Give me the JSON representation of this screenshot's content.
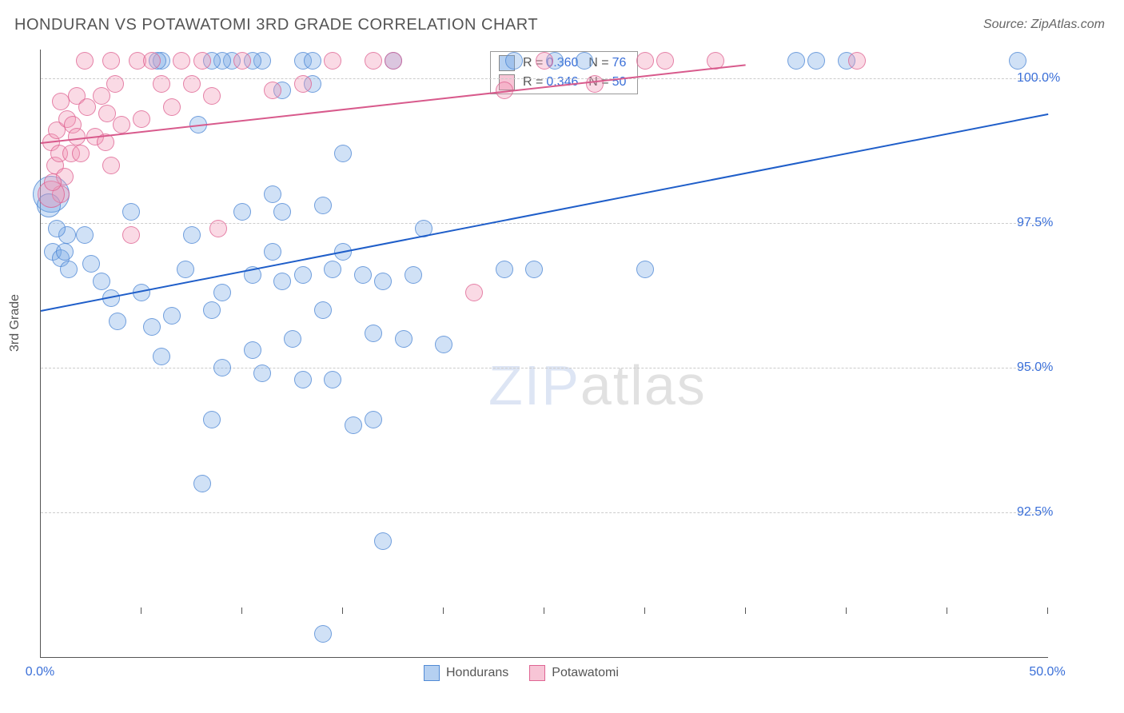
{
  "title": "HONDURAN VS POTAWATOMI 3RD GRADE CORRELATION CHART",
  "source_prefix": "Source: ",
  "source": "ZipAtlas.com",
  "watermark": {
    "a": "ZIP",
    "b": "atlas"
  },
  "y_axis_label": "3rd Grade",
  "legend": [
    {
      "name": "Hondurans",
      "color_fill": "rgba(120,170,230,.55)",
      "color_stroke": "rgba(70,130,210,.9)"
    },
    {
      "name": "Potawatomi",
      "color_fill": "rgba(240,150,180,.55)",
      "color_stroke": "rgba(220,90,140,.9)"
    }
  ],
  "rbox": [
    {
      "swatch_fill": "rgba(120,170,230,.55)",
      "r_label": "R =",
      "r": "0.360",
      "n_label": "N =",
      "n": "76"
    },
    {
      "swatch_fill": "rgba(240,150,180,.55)",
      "r_label": "R =",
      "r": "0.346",
      "n_label": "N =",
      "n": "50"
    }
  ],
  "chart": {
    "type": "scatter",
    "xlim": [
      0,
      50
    ],
    "ylim": [
      90,
      100.5
    ],
    "x_ticks": [
      0,
      5,
      10,
      15,
      20,
      25,
      30,
      35,
      40,
      45,
      50
    ],
    "x_tick_labels": {
      "0": "0.0%",
      "50": "50.0%"
    },
    "y_gridlines": [
      92.5,
      95.0,
      97.5,
      100.0
    ],
    "y_tick_labels": [
      "92.5%",
      "95.0%",
      "97.5%",
      "100.0%"
    ],
    "background_color": "#ffffff",
    "grid_color": "#cccccc",
    "marker_radius": 10,
    "series": [
      {
        "name": "Hondurans",
        "class": "s1",
        "color": "#4a82d2",
        "trend": {
          "x1": 0,
          "y1": 96.0,
          "x2": 50,
          "y2": 99.4,
          "color": "#1f5ec9",
          "width": 2
        },
        "points": [
          [
            0.5,
            98.0,
            22
          ],
          [
            0.4,
            97.8,
            14
          ],
          [
            0.6,
            97.0
          ],
          [
            1.0,
            96.9
          ],
          [
            1.2,
            97.0
          ],
          [
            1.4,
            96.7
          ],
          [
            1.3,
            97.3
          ],
          [
            0.8,
            97.4
          ],
          [
            2.2,
            97.3
          ],
          [
            2.5,
            96.8
          ],
          [
            3.0,
            96.5
          ],
          [
            3.5,
            96.2
          ],
          [
            3.8,
            95.8
          ],
          [
            4.5,
            97.7
          ],
          [
            5.0,
            96.3
          ],
          [
            5.5,
            95.7
          ],
          [
            6.0,
            95.2
          ],
          [
            6.5,
            95.9
          ],
          [
            7.5,
            97.3
          ],
          [
            7.8,
            99.2
          ],
          [
            8.0,
            93.0
          ],
          [
            8.5,
            94.1
          ],
          [
            8.5,
            96.0
          ],
          [
            9.0,
            95.0
          ],
          [
            9.0,
            96.3
          ],
          [
            10.0,
            97.7
          ],
          [
            10.5,
            95.3
          ],
          [
            10.5,
            96.6
          ],
          [
            11.0,
            94.9
          ],
          [
            11.5,
            98.0
          ],
          [
            11.5,
            97.0
          ],
          [
            12.0,
            96.5
          ],
          [
            12.0,
            97.7
          ],
          [
            12.5,
            95.5
          ],
          [
            13.0,
            96.6
          ],
          [
            13.0,
            94.8
          ],
          [
            13.0,
            100.3
          ],
          [
            14.0,
            97.8
          ],
          [
            14.0,
            96.0
          ],
          [
            14.0,
            90.4
          ],
          [
            14.5,
            94.8
          ],
          [
            14.5,
            96.7
          ],
          [
            15.0,
            98.7
          ],
          [
            15.0,
            97.0
          ],
          [
            15.5,
            94.0
          ],
          [
            16.0,
            96.6
          ],
          [
            16.5,
            95.6
          ],
          [
            16.5,
            94.1
          ],
          [
            17.0,
            96.5
          ],
          [
            17.0,
            92.0
          ],
          [
            17.5,
            100.3
          ],
          [
            18.0,
            95.5
          ],
          [
            18.5,
            96.6
          ],
          [
            19.0,
            97.4
          ],
          [
            20.0,
            95.4
          ],
          [
            23.0,
            96.7
          ],
          [
            23.5,
            100.3
          ],
          [
            24.5,
            96.7
          ],
          [
            25.5,
            100.3
          ],
          [
            27.0,
            100.3
          ],
          [
            30.0,
            96.7
          ],
          [
            37.5,
            100.3
          ],
          [
            38.5,
            100.3
          ],
          [
            40.0,
            100.3
          ],
          [
            48.5,
            100.3
          ],
          [
            9.5,
            100.3
          ],
          [
            9.0,
            100.3
          ],
          [
            6.0,
            100.3
          ],
          [
            11.0,
            100.3
          ],
          [
            10.5,
            100.3
          ],
          [
            8.5,
            100.3
          ],
          [
            13.5,
            100.3
          ],
          [
            5.8,
            100.3
          ],
          [
            12.0,
            99.8
          ],
          [
            13.5,
            99.9
          ],
          [
            7.2,
            96.7
          ]
        ]
      },
      {
        "name": "Potawatomi",
        "class": "s2",
        "color": "#d85a8c",
        "trend": {
          "x1": 0,
          "y1": 98.9,
          "x2": 35,
          "y2": 100.25,
          "color": "#d85a8c",
          "width": 2
        },
        "points": [
          [
            0.5,
            98.9
          ],
          [
            0.7,
            98.5
          ],
          [
            0.8,
            99.1
          ],
          [
            0.9,
            98.7
          ],
          [
            1.0,
            99.6
          ],
          [
            1.2,
            98.3
          ],
          [
            1.3,
            99.3
          ],
          [
            1.5,
            98.7
          ],
          [
            1.6,
            99.2
          ],
          [
            1.8,
            99.0
          ],
          [
            1.8,
            99.7
          ],
          [
            2.0,
            98.7
          ],
          [
            2.2,
            100.3
          ],
          [
            2.3,
            99.5
          ],
          [
            2.7,
            99.0
          ],
          [
            3.0,
            99.7
          ],
          [
            3.2,
            98.9
          ],
          [
            3.3,
            99.4
          ],
          [
            3.5,
            98.5
          ],
          [
            3.5,
            100.3
          ],
          [
            3.7,
            99.9
          ],
          [
            4.0,
            99.2
          ],
          [
            4.5,
            97.3
          ],
          [
            4.8,
            100.3
          ],
          [
            5.0,
            99.3
          ],
          [
            5.5,
            100.3
          ],
          [
            6.0,
            99.9
          ],
          [
            6.5,
            99.5
          ],
          [
            7.0,
            100.3
          ],
          [
            7.5,
            99.9
          ],
          [
            8.0,
            100.3
          ],
          [
            8.5,
            99.7
          ],
          [
            8.8,
            97.4
          ],
          [
            10.0,
            100.3
          ],
          [
            11.5,
            99.8
          ],
          [
            13.0,
            99.9
          ],
          [
            14.5,
            100.3
          ],
          [
            16.5,
            100.3
          ],
          [
            17.5,
            100.3
          ],
          [
            21.5,
            96.3
          ],
          [
            23.0,
            99.8
          ],
          [
            25.0,
            100.3
          ],
          [
            27.5,
            99.9
          ],
          [
            30.0,
            100.3
          ],
          [
            31.0,
            100.3
          ],
          [
            33.5,
            100.3
          ],
          [
            40.5,
            100.3
          ],
          [
            1.0,
            98.0
          ],
          [
            0.5,
            98.0,
            16
          ],
          [
            0.6,
            98.2
          ]
        ]
      }
    ]
  }
}
